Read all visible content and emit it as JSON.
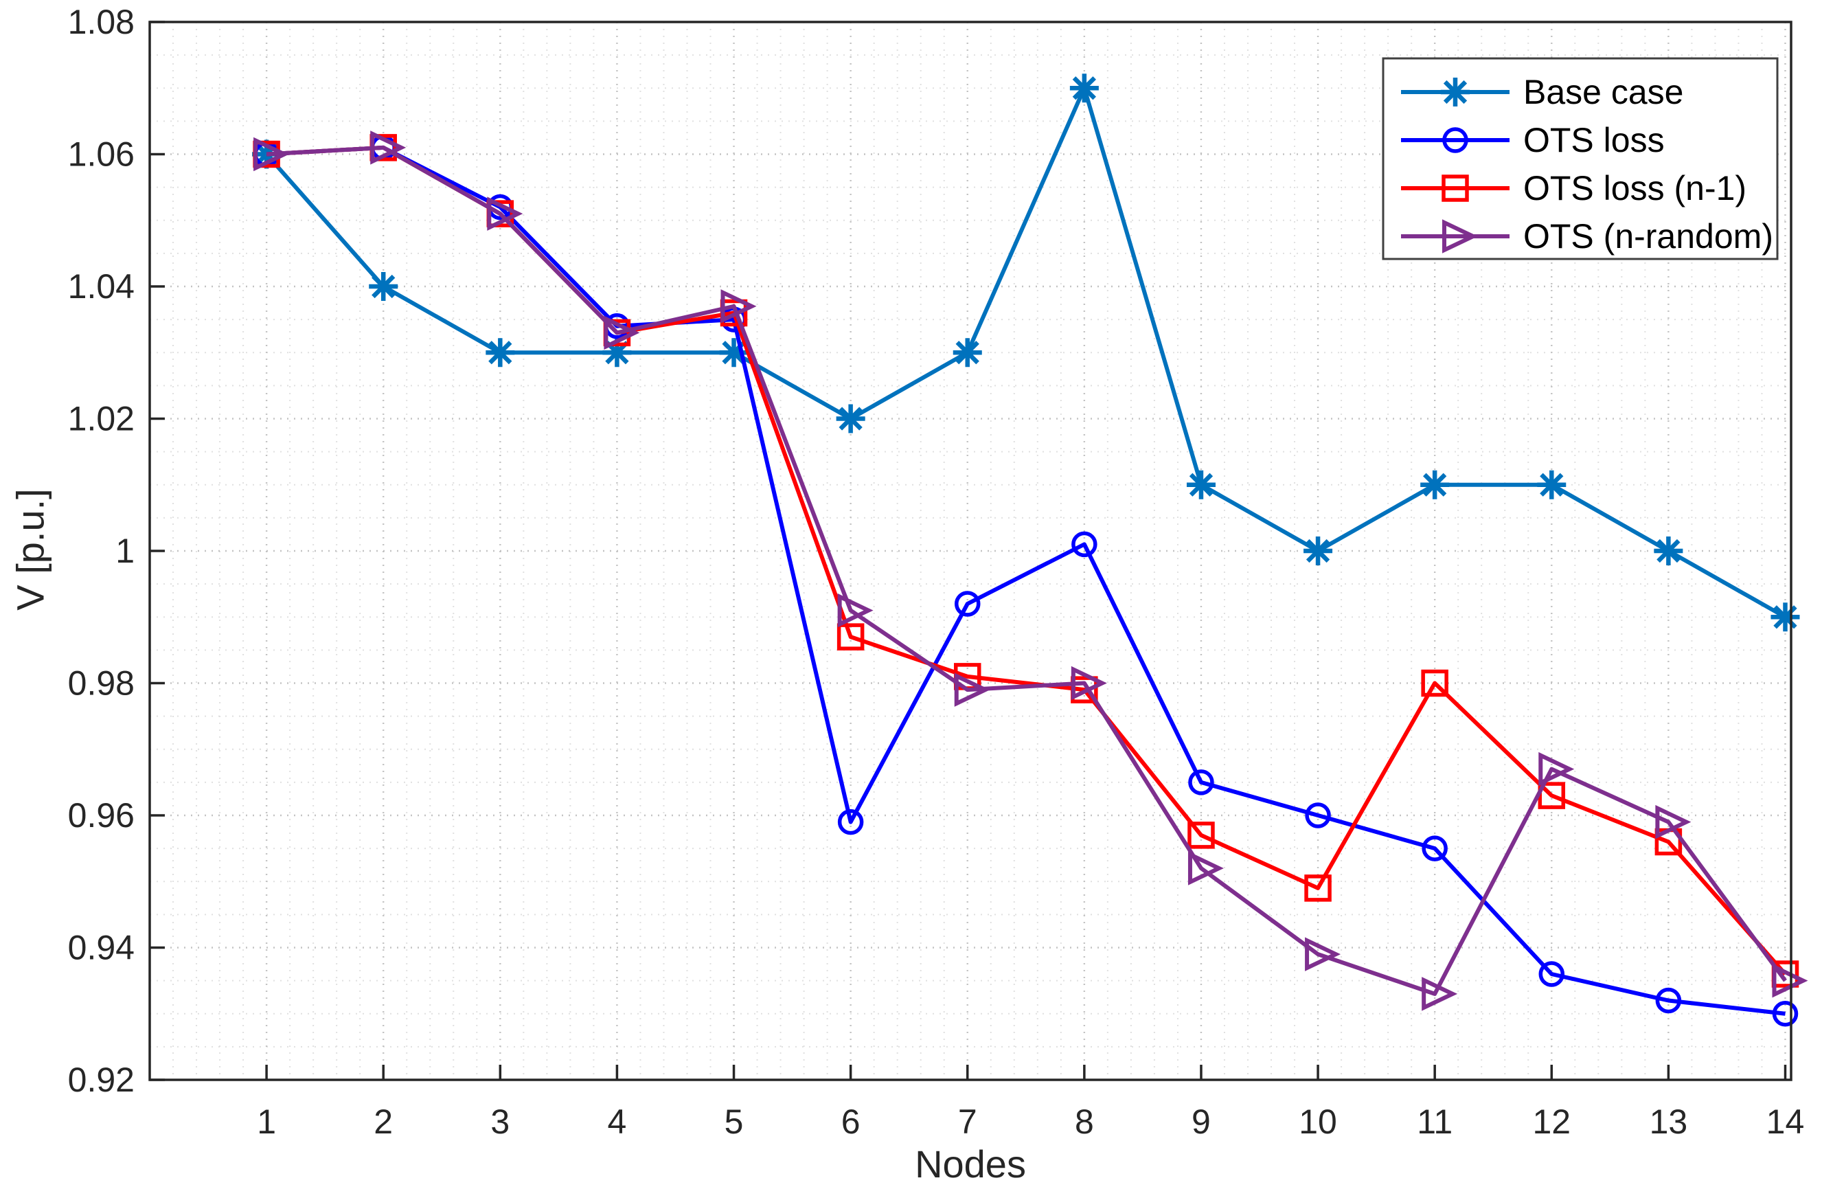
{
  "figure": {
    "background": "#ffffff",
    "axis_color": "#262626",
    "text_color": "#262626"
  },
  "chart_data": {
    "type": "line",
    "title": "",
    "xlabel": "Nodes",
    "ylabel": "V [p.u.]",
    "x": [
      1,
      2,
      3,
      4,
      5,
      6,
      7,
      8,
      9,
      10,
      11,
      12,
      13,
      14
    ],
    "x_tick_labels": [
      "1",
      "2",
      "3",
      "4",
      "5",
      "6",
      "7",
      "8",
      "9",
      "10",
      "11",
      "12",
      "13",
      "14"
    ],
    "y_tick_labels": [
      "1.08",
      "1.06",
      "1.04",
      "1.02",
      "1",
      "0.98",
      "0.96",
      "0.94",
      "0.92"
    ],
    "y_tick_values": [
      1.08,
      1.06,
      1.04,
      1.02,
      1.0,
      0.98,
      0.96,
      0.94,
      0.92
    ],
    "xlim": [
      0,
      14.05
    ],
    "ylim": [
      0.92,
      1.08
    ],
    "y_major_step": 0.02,
    "y_minor_step": 0.005,
    "x_minor_step": 0.2,
    "grid": {
      "show": true,
      "major_color": "#c3c3c3",
      "minor_color": "#e0e0e0"
    },
    "legend_position": "top-right",
    "series": [
      {
        "name": "Base case",
        "color": "#0072BD",
        "marker": "asterisk",
        "values": [
          1.06,
          1.04,
          1.03,
          1.03,
          1.03,
          1.02,
          1.03,
          1.07,
          1.01,
          1.0,
          1.01,
          1.01,
          1.0,
          0.99
        ]
      },
      {
        "name": "OTS loss",
        "color": "#0000FF",
        "marker": "circle",
        "values": [
          1.06,
          1.061,
          1.052,
          1.034,
          1.035,
          0.959,
          0.992,
          1.001,
          0.965,
          0.96,
          0.955,
          0.936,
          0.932,
          0.93
        ]
      },
      {
        "name": "OTS loss (n-1)",
        "color": "#FF0000",
        "marker": "square",
        "values": [
          1.06,
          1.061,
          1.051,
          1.033,
          1.036,
          0.987,
          0.981,
          0.979,
          0.957,
          0.949,
          0.98,
          0.963,
          0.956,
          0.936
        ]
      },
      {
        "name": "OTS (n-random)",
        "color": "#7E2F8E",
        "marker": "triangle-right",
        "values": [
          1.06,
          1.061,
          1.051,
          1.033,
          1.037,
          0.991,
          0.979,
          0.98,
          0.952,
          0.939,
          0.933,
          0.967,
          0.959,
          0.935
        ]
      }
    ]
  }
}
